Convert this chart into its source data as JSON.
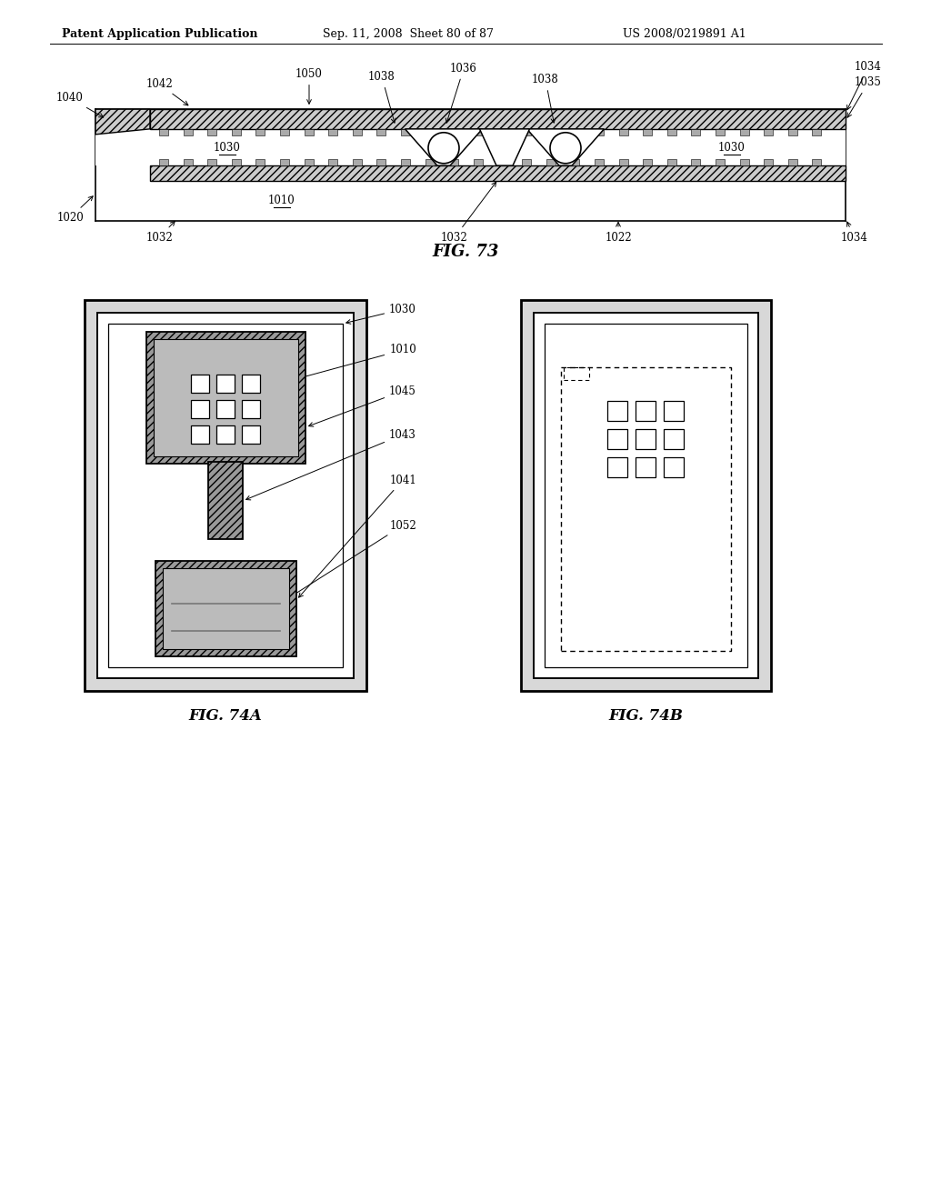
{
  "bg_color": "#ffffff",
  "line_color": "#000000",
  "header_left": "Patent Application Publication",
  "header_mid": "Sep. 11, 2008  Sheet 80 of 87",
  "header_right": "US 2008/0219891 A1",
  "fig73_caption": "FIG. 73",
  "fig74a_caption": "FIG. 74A",
  "fig74b_caption": "FIG. 74B",
  "label_fs": 8.5,
  "caption_fs": 12
}
